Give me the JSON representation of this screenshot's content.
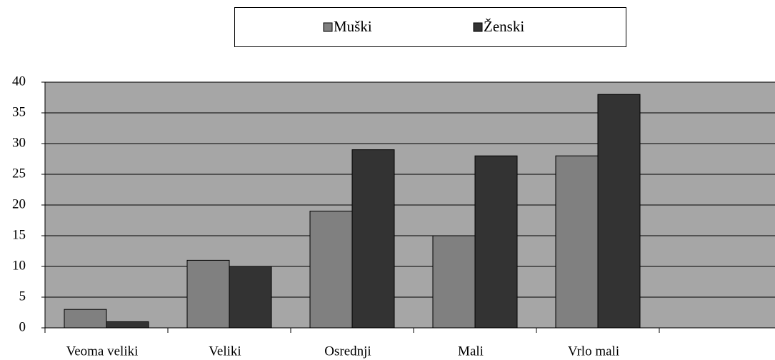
{
  "chart_data": {
    "type": "bar",
    "categories": [
      "Veoma veliki",
      "Veliki",
      "Osrednji",
      "Mali",
      "Vrlo mali",
      null
    ],
    "series": [
      {
        "name": "Muški",
        "color": "#808080",
        "values": [
          3,
          11,
          19,
          15,
          28,
          null
        ]
      },
      {
        "name": "Ženski",
        "color": "#333333",
        "values": [
          1,
          10,
          29,
          28,
          38,
          null
        ]
      }
    ],
    "ylim": [
      0,
      40
    ],
    "yticks": [
      0,
      5,
      10,
      15,
      20,
      25,
      30,
      35,
      40
    ],
    "grid": true,
    "plot_background": "#a6a6a6",
    "legend": "top"
  }
}
